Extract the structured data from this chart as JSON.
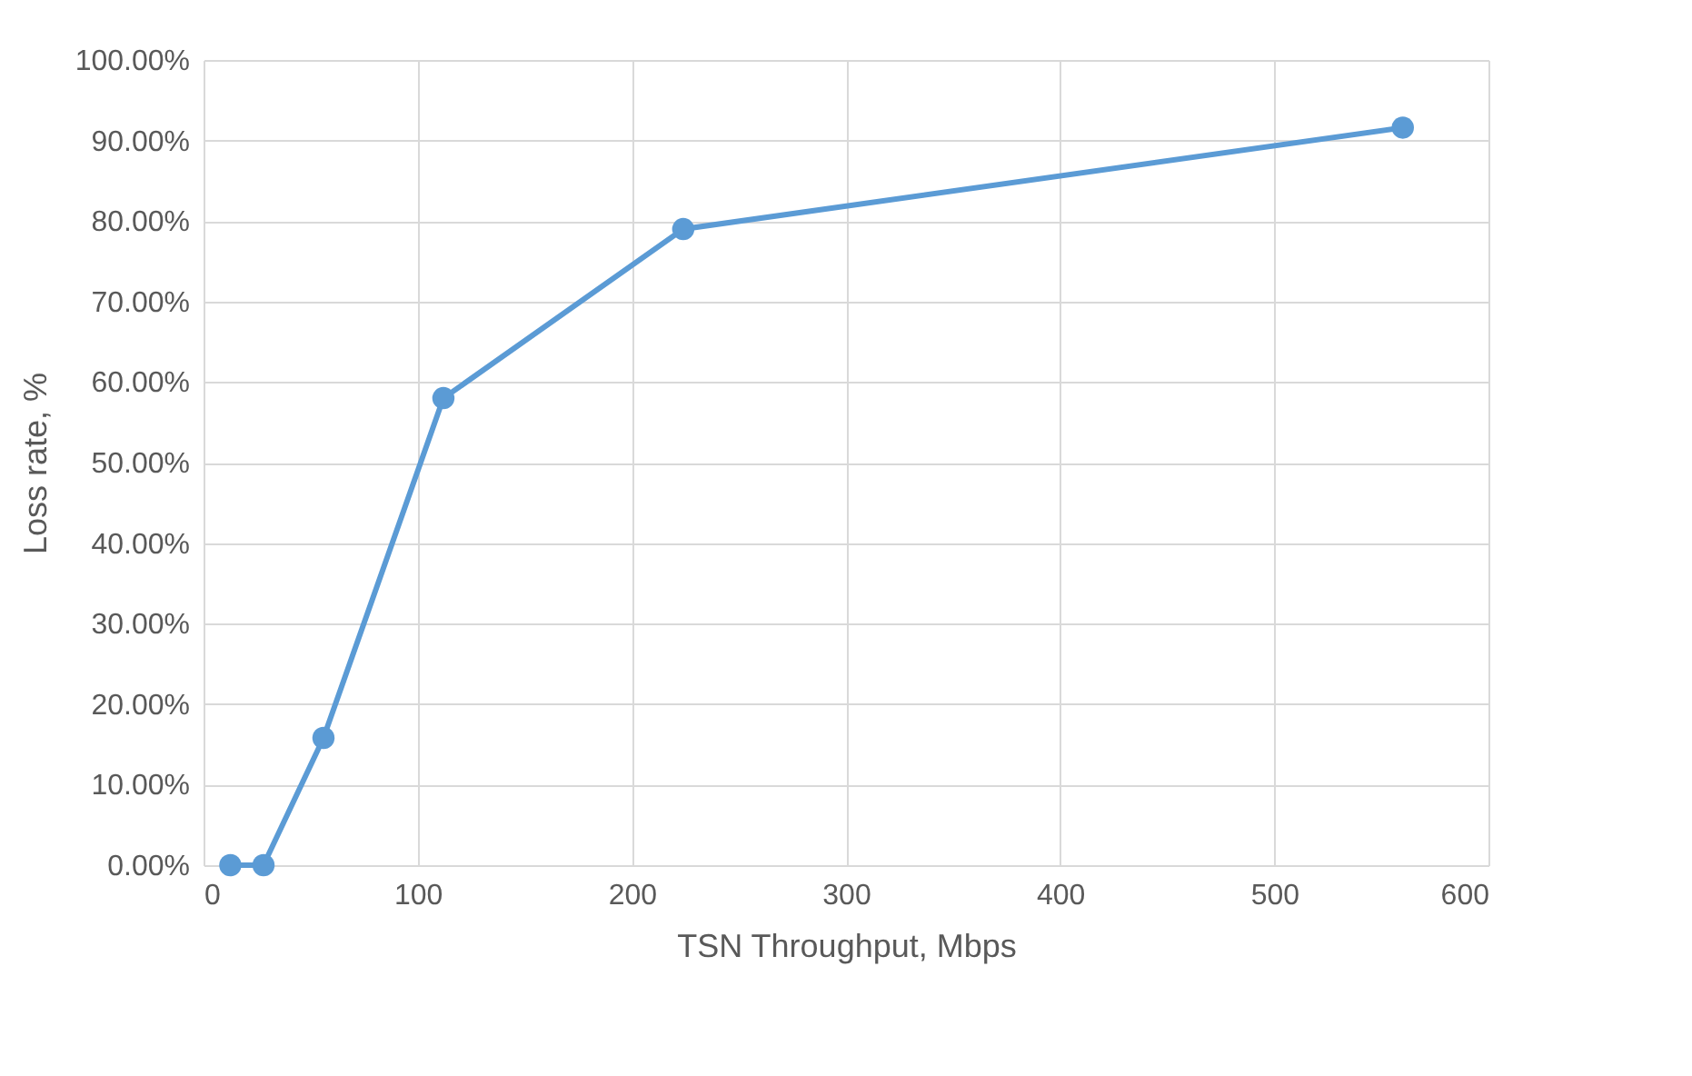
{
  "chart_data": {
    "type": "line",
    "xlabel": "TSN Throughput, Mbps",
    "ylabel": "Loss rate, %",
    "x": [
      12.5,
      28,
      56,
      112,
      224,
      560
    ],
    "series": [
      {
        "color": "#5b9bd5",
        "values": [
          0,
          0,
          15.8,
          58,
          79,
          91.6
        ]
      }
    ],
    "xlim": [
      0,
      600
    ],
    "xticks": [
      0,
      100,
      200,
      300,
      400,
      500,
      600
    ],
    "ylim": [
      0,
      100
    ],
    "yticks": [
      {
        "value": 0,
        "label": "0.00%"
      },
      {
        "value": 10,
        "label": "10.00%"
      },
      {
        "value": 20,
        "label": "20.00%"
      },
      {
        "value": 30,
        "label": "30.00%"
      },
      {
        "value": 40,
        "label": "40.00%"
      },
      {
        "value": 50,
        "label": "50.00%"
      },
      {
        "value": 60,
        "label": "60.00%"
      },
      {
        "value": 70,
        "label": "70.00%"
      },
      {
        "value": 80,
        "label": "80.00%"
      },
      {
        "value": 90,
        "label": "90.00%"
      },
      {
        "value": 100,
        "label": "100.00%"
      }
    ],
    "grid": true,
    "marker": "circle",
    "line_style": "solid"
  }
}
